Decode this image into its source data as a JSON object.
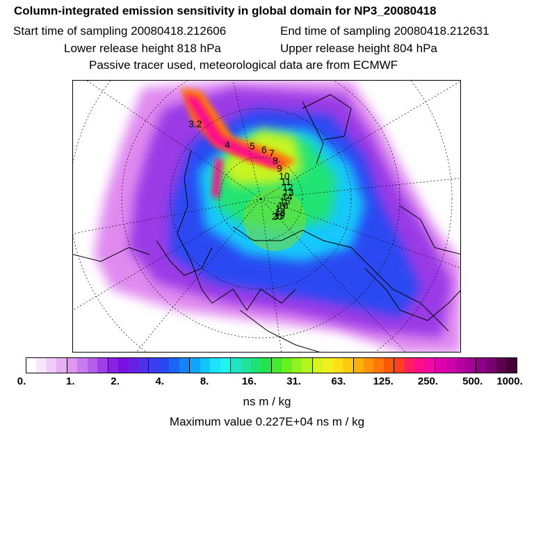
{
  "header": {
    "title": "Column-integrated emission sensitivity in global domain for NP3_20080418",
    "start_label": "Start time of sampling 20080418.212606",
    "end_label": "End time of sampling 20080418.212631",
    "lower_label": "Lower release height  818 hPa",
    "upper_label": "Upper release height  804 hPa",
    "tracer_label": "Passive tracer used, meteorological data are from ECMWF"
  },
  "map": {
    "trajectory_labels": [
      "3.2",
      "4",
      "5",
      "6",
      "7",
      "8",
      "9",
      "10",
      "11",
      "12",
      "13",
      "14",
      "15",
      "16",
      "17",
      "18",
      "19",
      "20"
    ]
  },
  "colorbar": {
    "colors": [
      "#ffffff",
      "#f7e5fb",
      "#f0cbf7",
      "#e8b0f3",
      "#e196f0",
      "#c97ced",
      "#b45ee9",
      "#a03fe6",
      "#8a22e2",
      "#7a10e0",
      "#6620e0",
      "#5030e8",
      "#3c3cf0",
      "#2848f4",
      "#1c64f6",
      "#1484f8",
      "#10a4fa",
      "#14c4fc",
      "#1ce4fe",
      "#20f4ee",
      "#20e4c4",
      "#20e29c",
      "#20e274",
      "#24e44c",
      "#44ea2c",
      "#6af020",
      "#90f420",
      "#b4f420",
      "#d8f420",
      "#f2f01c",
      "#fee014",
      "#feca10",
      "#feb00c",
      "#fe940a",
      "#fe7808",
      "#fe5806",
      "#fe3e20",
      "#fe1e5e",
      "#fc0e8a",
      "#f208a4",
      "#e000ae",
      "#cc00aa",
      "#b800a2",
      "#a40096",
      "#8e0086",
      "#780070",
      "#5e0050",
      "#440036"
    ],
    "tick_labels": [
      "0.",
      "1.",
      "2.",
      "4.",
      "8.",
      "16.",
      "31.",
      "63.",
      "125.",
      "250.",
      "500.",
      "1000."
    ],
    "unit": "ns m / kg",
    "max_value_text": "Maximum value  0.227E+04 ns m / kg"
  }
}
